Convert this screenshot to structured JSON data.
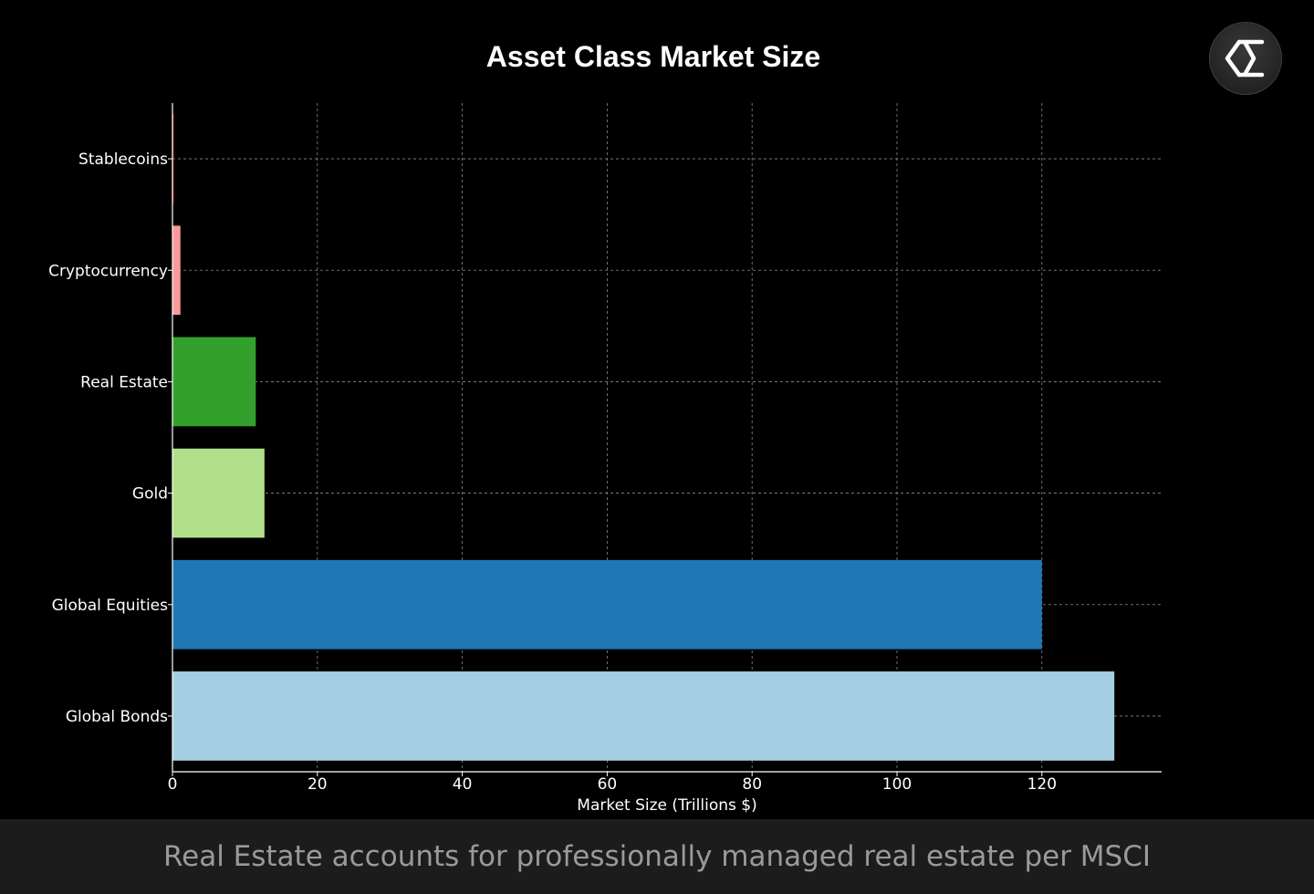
{
  "chart_data": {
    "type": "bar",
    "orientation": "horizontal",
    "title": "Asset Class Market Size",
    "xlabel": "Market Size (Trillions $)",
    "ylabel": "",
    "xlim": [
      0,
      137
    ],
    "xticks": [
      0,
      20,
      40,
      60,
      80,
      100,
      120
    ],
    "grid": true,
    "categories": [
      "Global Bonds",
      "Global Equities",
      "Gold",
      "Real Estate",
      "Cryptocurrency",
      "Stablecoins"
    ],
    "values": [
      130,
      120,
      12.7,
      11.5,
      1.1,
      0.16
    ],
    "colors": [
      "#a6cee3",
      "#1f78b4",
      "#b2df8a",
      "#33a02c",
      "#fb9a99",
      "#e31a1c"
    ]
  },
  "logo": {
    "icon": "sigma-logo-icon"
  },
  "caption": {
    "text": "Real Estate accounts for professionally managed real estate per MSCI"
  }
}
